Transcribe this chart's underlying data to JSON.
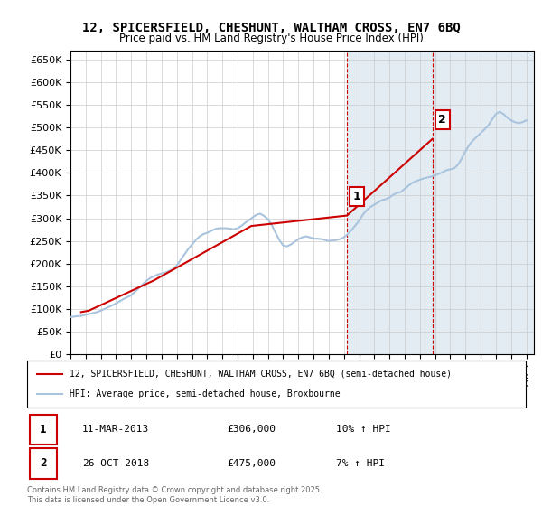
{
  "title_line1": "12, SPICERSFIELD, CHESHUNT, WALTHAM CROSS, EN7 6BQ",
  "title_line2": "Price paid vs. HM Land Registry's House Price Index (HPI)",
  "ylim": [
    0,
    670000
  ],
  "yticks": [
    0,
    50000,
    100000,
    150000,
    200000,
    250000,
    300000,
    350000,
    400000,
    450000,
    500000,
    550000,
    600000,
    650000
  ],
  "price_paid_color": "#cc0000",
  "hpi_color": "#aac4dd",
  "highlight_region1_start": 2013.2,
  "highlight_region1_end": 2019.0,
  "highlight_region2_start": 2018.8,
  "highlight_region2_end": 2025.5,
  "marker1_x": 2013.2,
  "marker1_y": 306000,
  "marker2_x": 2018.82,
  "marker2_y": 475000,
  "legend_label1": "12, SPICERSFIELD, CHESHUNT, WALTHAM CROSS, EN7 6BQ (semi-detached house)",
  "legend_label2": "HPI: Average price, semi-detached house, Broxbourne",
  "table_row1_num": "1",
  "table_row1_date": "11-MAR-2013",
  "table_row1_price": "£306,000",
  "table_row1_hpi": "10% ↑ HPI",
  "table_row2_num": "2",
  "table_row2_date": "26-OCT-2018",
  "table_row2_price": "£475,000",
  "table_row2_hpi": "7% ↑ HPI",
  "footer": "Contains HM Land Registry data © Crown copyright and database right 2025.\nThis data is licensed under the Open Government Licence v3.0.",
  "hpi_data_x": [
    1995.0,
    1995.25,
    1995.5,
    1995.75,
    1996.0,
    1996.25,
    1996.5,
    1996.75,
    1997.0,
    1997.25,
    1997.5,
    1997.75,
    1998.0,
    1998.25,
    1998.5,
    1998.75,
    1999.0,
    1999.25,
    1999.5,
    1999.75,
    2000.0,
    2000.25,
    2000.5,
    2000.75,
    2001.0,
    2001.25,
    2001.5,
    2001.75,
    2002.0,
    2002.25,
    2002.5,
    2002.75,
    2003.0,
    2003.25,
    2003.5,
    2003.75,
    2004.0,
    2004.25,
    2004.5,
    2004.75,
    2005.0,
    2005.25,
    2005.5,
    2005.75,
    2006.0,
    2006.25,
    2006.5,
    2006.75,
    2007.0,
    2007.25,
    2007.5,
    2007.75,
    2008.0,
    2008.25,
    2008.5,
    2008.75,
    2009.0,
    2009.25,
    2009.5,
    2009.75,
    2010.0,
    2010.25,
    2010.5,
    2010.75,
    2011.0,
    2011.25,
    2011.5,
    2011.75,
    2012.0,
    2012.25,
    2012.5,
    2012.75,
    2013.0,
    2013.25,
    2013.5,
    2013.75,
    2014.0,
    2014.25,
    2014.5,
    2014.75,
    2015.0,
    2015.25,
    2015.5,
    2015.75,
    2016.0,
    2016.25,
    2016.5,
    2016.75,
    2017.0,
    2017.25,
    2017.5,
    2017.75,
    2018.0,
    2018.25,
    2018.5,
    2018.75,
    2019.0,
    2019.25,
    2019.5,
    2019.75,
    2020.0,
    2020.25,
    2020.5,
    2020.75,
    2021.0,
    2021.25,
    2021.5,
    2021.75,
    2022.0,
    2022.25,
    2022.5,
    2022.75,
    2023.0,
    2023.25,
    2023.5,
    2023.75,
    2024.0,
    2024.25,
    2024.5,
    2024.75,
    2025.0
  ],
  "hpi_data_y": [
    82000,
    83000,
    84000,
    85000,
    87000,
    89000,
    91000,
    93000,
    96000,
    100000,
    104000,
    108000,
    112000,
    117000,
    122000,
    126000,
    130000,
    138000,
    146000,
    154000,
    162000,
    168000,
    172000,
    176000,
    178000,
    180000,
    184000,
    188000,
    196000,
    208000,
    220000,
    232000,
    242000,
    252000,
    260000,
    265000,
    268000,
    272000,
    276000,
    278000,
    278000,
    278000,
    277000,
    276000,
    278000,
    283000,
    290000,
    296000,
    302000,
    308000,
    310000,
    305000,
    298000,
    285000,
    268000,
    252000,
    240000,
    238000,
    242000,
    248000,
    254000,
    258000,
    260000,
    258000,
    255000,
    255000,
    254000,
    252000,
    250000,
    251000,
    252000,
    254000,
    258000,
    265000,
    274000,
    284000,
    295000,
    308000,
    318000,
    325000,
    330000,
    335000,
    340000,
    342000,
    346000,
    352000,
    356000,
    358000,
    365000,
    372000,
    378000,
    382000,
    385000,
    388000,
    390000,
    392000,
    395000,
    398000,
    402000,
    406000,
    408000,
    410000,
    418000,
    432000,
    448000,
    462000,
    472000,
    480000,
    488000,
    496000,
    505000,
    518000,
    530000,
    535000,
    530000,
    522000,
    516000,
    512000,
    510000,
    512000,
    516000
  ],
  "price_paid_x": [
    1995.7,
    1996.2,
    2000.5,
    2006.9,
    2013.2,
    2018.82
  ],
  "price_paid_y": [
    93000,
    96000,
    163000,
    283000,
    306000,
    475000
  ],
  "xmin": 1995,
  "xmax": 2025.5
}
